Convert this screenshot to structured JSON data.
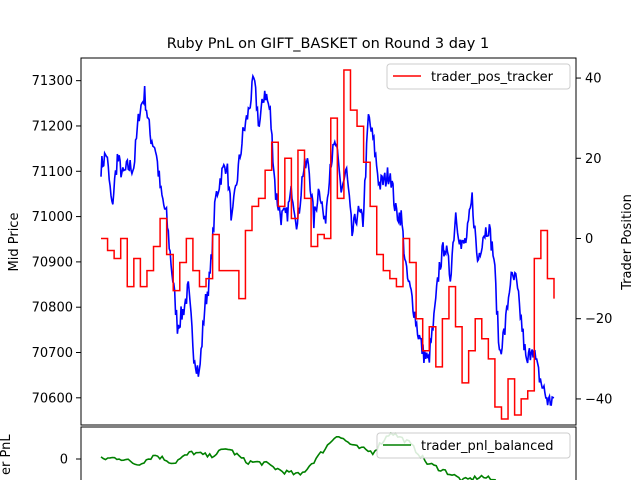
{
  "chart_data": [
    {
      "type": "line",
      "title": "Ruby PnL on GIFT_BASKET on Round 3 day 1",
      "ylabel": "Mid Price",
      "ylabel_right": "Trader Position",
      "ylim": [
        70540,
        71350
      ],
      "ylim_right": [
        -46.5,
        45
      ],
      "yticks": [
        "70600",
        "70700",
        "70800",
        "70900",
        "71000",
        "71100",
        "71200",
        "71300"
      ],
      "yticks_right": [
        "−40",
        "−20",
        "0",
        "20",
        "40"
      ],
      "grid": false,
      "legend_position": "top-right",
      "series": [
        {
          "name": "",
          "axis": "left",
          "color": "#0000ff",
          "values": [
            71110,
            71140,
            71020,
            71130,
            71090,
            71110,
            71110,
            71230,
            71270,
            71180,
            71150,
            71050,
            71000,
            70880,
            70760,
            70790,
            70840,
            70700,
            70650,
            70800,
            70870,
            71040,
            71090,
            71120,
            70990,
            71090,
            71180,
            71230,
            71300,
            71200,
            71280,
            71230,
            71050,
            71000,
            71000,
            71060,
            70980,
            71100,
            71120,
            70990,
            71070,
            70980,
            71120,
            71160,
            71060,
            71100,
            70960,
            71010,
            70990,
            71220,
            71160,
            71070,
            71080,
            71100,
            71010,
            71000,
            70870,
            70820,
            70750,
            70700,
            70680,
            70770,
            70890,
            70940,
            70870,
            71010,
            70930,
            70950,
            71040,
            70900,
            70960,
            70980,
            70910,
            70700,
            70750,
            70860,
            70860,
            70770,
            70670,
            70720,
            70660,
            70620,
            70590,
            70600
          ]
        },
        {
          "name": "trader_pos_tracker",
          "axis": "right",
          "color": "#ff0000",
          "values": [
            0,
            -3,
            -5,
            0,
            -12,
            -5,
            -12,
            -8,
            -2,
            5,
            -4,
            -13,
            -6,
            0,
            -8,
            -12,
            -10,
            1,
            -8,
            -8,
            -8,
            -15,
            2,
            8,
            10,
            17,
            24,
            8,
            20,
            5,
            22,
            10,
            -2,
            1,
            0,
            30,
            10,
            42,
            32,
            28,
            19,
            8,
            -4,
            -8,
            -10,
            -12,
            0,
            -6,
            -20,
            -28,
            -22,
            -32,
            -20,
            -12,
            -22,
            -36,
            -28,
            -20,
            -25,
            -30,
            -42,
            -45,
            -35,
            -44,
            -40,
            -38,
            -5,
            2,
            -10,
            -15
          ]
        }
      ],
      "legend": [
        "trader_pos_tracker"
      ]
    },
    {
      "type": "line",
      "ylabel": "Trader PnL",
      "ylabel_partial": "er PnL",
      "yticks": [
        "0"
      ],
      "legend_position": "top-right",
      "series": [
        {
          "name": "trader_pnl_balanced",
          "color": "#008000",
          "values": [
            0,
            100,
            -400,
            300,
            -300,
            500,
            200,
            800,
            -200,
            -300,
            -900,
            -1200,
            200,
            1800,
            900,
            500,
            2000,
            1200,
            -300,
            -900,
            -1600,
            -1300,
            -1700,
            -2000,
            -1900,
            -2100
          ]
        }
      ],
      "legend": [
        "trader_pnl_balanced"
      ]
    }
  ]
}
